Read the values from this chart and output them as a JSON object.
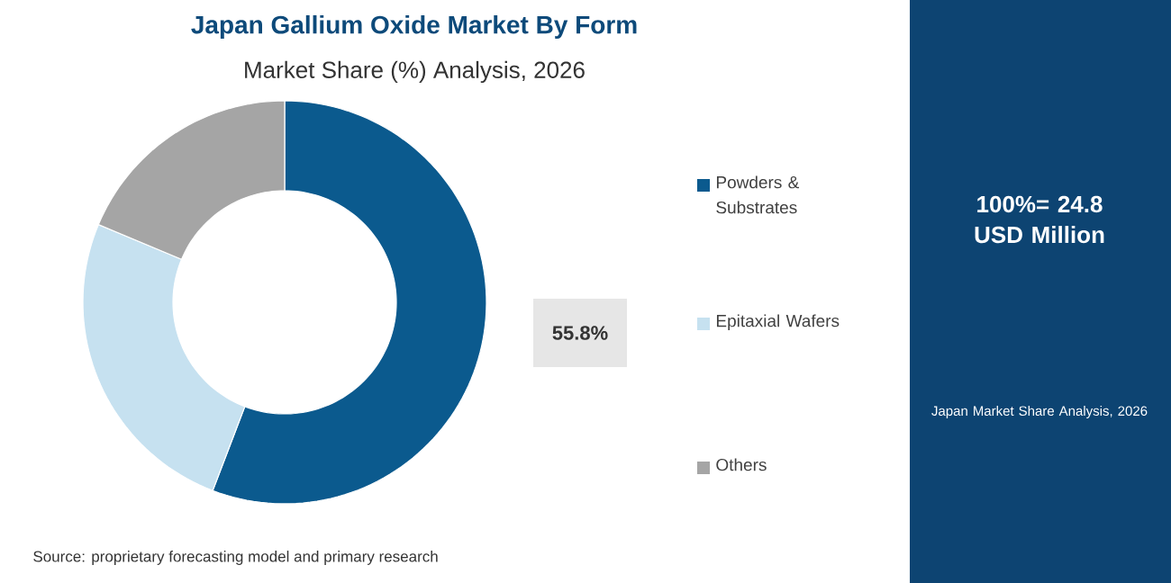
{
  "chart_data": {
    "type": "donut",
    "title": "Japan Gallium Oxide Market By Form",
    "subtitle": "Market Share (%) Analysis, 2026",
    "categories": [
      "Powders & Substrates",
      "Epitaxial Wafers",
      "Others"
    ],
    "values": [
      55.8,
      25.5,
      18.7
    ],
    "colors": [
      "#0b5a8e",
      "#c6e1f0",
      "#a5a5a5"
    ],
    "value_labels": [
      "55.8%",
      null,
      null
    ],
    "legend": "right",
    "annotations": [
      "100%= 24.8 USD Million",
      "Japan Market Share Analysis, 2026",
      "Source: proprietary forecasting model and primary research"
    ]
  }
}
